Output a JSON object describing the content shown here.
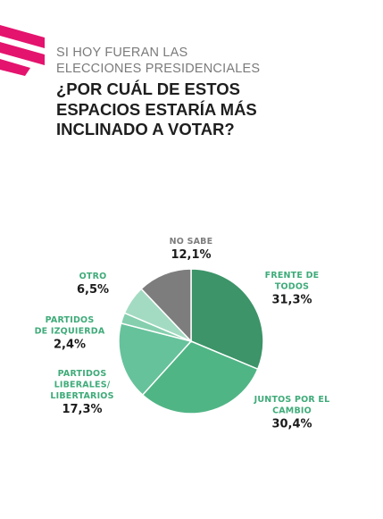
{
  "header": {
    "subtitle": "SI HOY FUERAN LAS\nELECCIONES PRESIDENCIALES",
    "title": "¿POR CUÁL DE ESTOS\nESPACIOS ESTARÍA MÁS\nINCLINADO A VOTAR?"
  },
  "colors": {
    "brand": "#e4136e"
  },
  "chart_data": {
    "type": "pie",
    "title": "",
    "slices": [
      {
        "label": "FRENTE DE\nTODOS",
        "value": 31.3,
        "display": "31,3%",
        "color": "#3c9468",
        "label_color": "#3fab79"
      },
      {
        "label": "JUNTOS POR EL\nCAMBIO",
        "value": 30.4,
        "display": "30,4%",
        "color": "#50b585",
        "label_color": "#3fab79"
      },
      {
        "label": "PARTIDOS\nLIBERALES/\nLIBERTARIOS",
        "value": 17.3,
        "display": "17,3%",
        "color": "#66c29b",
        "label_color": "#3fab79"
      },
      {
        "label": "PARTIDOS\nDE IZQUIERDA",
        "value": 2.4,
        "display": "2,4%",
        "color": "#85cfae",
        "label_color": "#3fab79"
      },
      {
        "label": "OTRO",
        "value": 6.5,
        "display": "6,5%",
        "color": "#a3dbc2",
        "label_color": "#3fab79"
      },
      {
        "label": "NO SABE",
        "value": 12.1,
        "display": "12,1%",
        "color": "#7d7d7d",
        "label_color": "#7d7d7d"
      }
    ],
    "legend": "none"
  }
}
